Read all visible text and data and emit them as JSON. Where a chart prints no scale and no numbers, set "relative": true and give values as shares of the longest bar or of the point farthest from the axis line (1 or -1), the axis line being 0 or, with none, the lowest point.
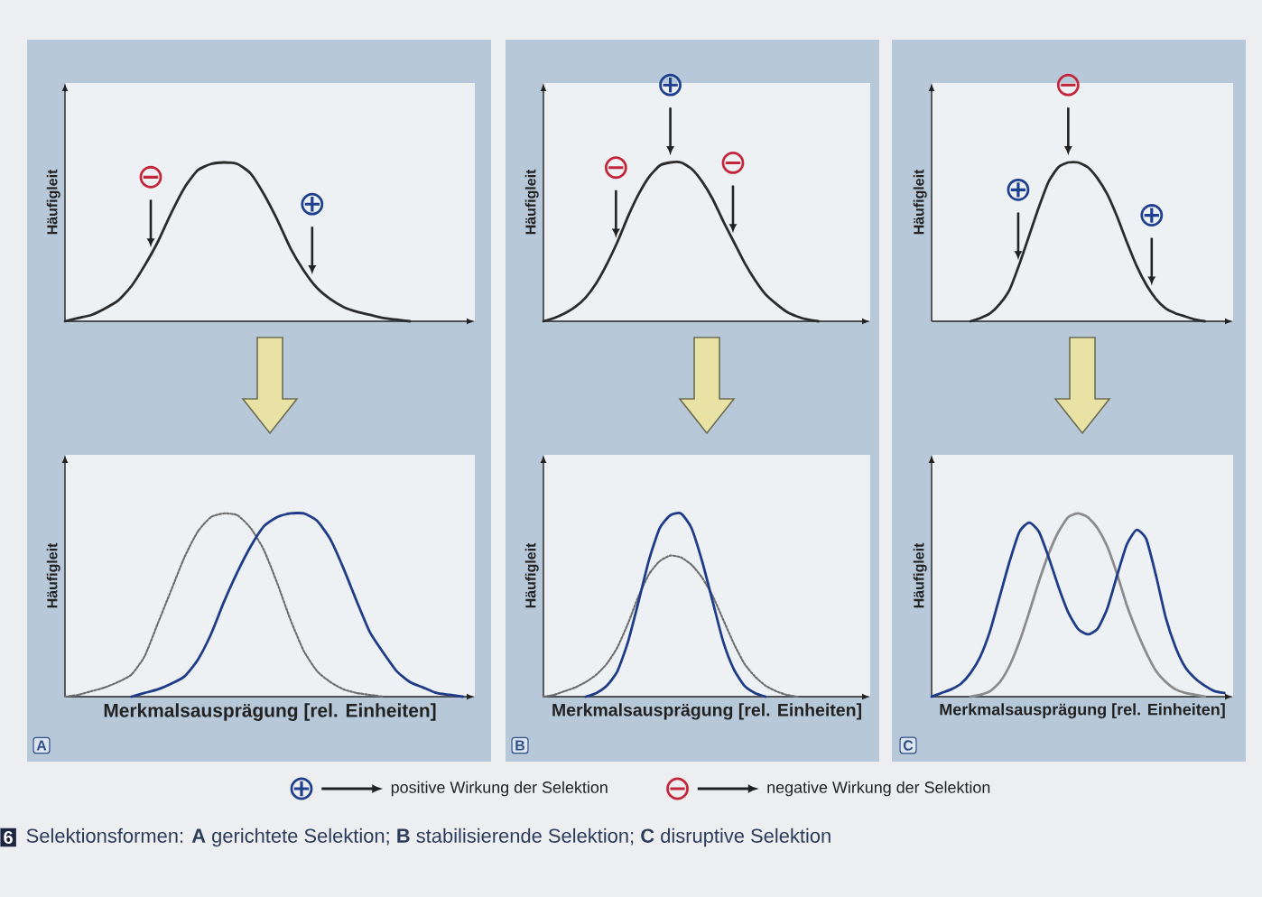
{
  "chart_data": [
    {
      "type": "line",
      "relative": true,
      "ylabel": "Häufigleit",
      "categories": [
        null,
        null,
        null,
        null,
        null,
        null,
        null,
        null,
        null,
        null,
        null,
        null,
        null,
        null,
        null,
        null,
        null,
        null,
        null,
        null,
        null,
        null,
        null,
        null,
        null,
        null,
        null,
        null,
        null,
        null,
        null
      ],
      "series": [
        {
          "color": "#2b2b2b",
          "values": [
            0.0,
            0.02,
            0.04,
            0.08,
            0.13,
            0.22,
            0.35,
            0.5,
            0.68,
            0.84,
            0.95,
            0.99,
            1.0,
            0.99,
            0.93,
            0.8,
            0.64,
            0.46,
            0.32,
            0.21,
            0.14,
            0.09,
            0.06,
            0.04,
            0.02,
            0.01,
            0.0,
            null,
            null,
            null,
            null
          ]
        }
      ],
      "annotations": [
        {
          "text": "⊖",
          "y": 0.42
        },
        {
          "text": "⊕",
          "y": 0.25
        }
      ]
    },
    {
      "type": "line",
      "relative": true,
      "ylabel": "Häufigleit",
      "categories": [
        null,
        null,
        null,
        null,
        null,
        null,
        null,
        null,
        null,
        null,
        null,
        null,
        null,
        null,
        null,
        null,
        null,
        null,
        null,
        null,
        null,
        null,
        null,
        null,
        null,
        null,
        null,
        null,
        null,
        null,
        null
      ],
      "series": [
        {
          "color": "#2b2b2b",
          "values": [
            0.0,
            0.02,
            0.05,
            0.09,
            0.15,
            0.24,
            0.36,
            0.5,
            0.66,
            0.8,
            0.91,
            0.98,
            1.0,
            1.0,
            0.96,
            0.88,
            0.77,
            0.63,
            0.5,
            0.37,
            0.26,
            0.17,
            0.11,
            0.06,
            0.03,
            0.01,
            0.0,
            null,
            null,
            null,
            null
          ]
        }
      ],
      "annotations": [
        {
          "text": "⊖",
          "y": 0.48
        },
        {
          "text": "⊕",
          "y": 1.0
        },
        {
          "text": "⊖",
          "y": 0.51
        }
      ]
    },
    {
      "type": "line",
      "relative": true,
      "ylabel": "Häufigleit",
      "categories": [
        null,
        null,
        null,
        null,
        null,
        null,
        null,
        null,
        null,
        null,
        null,
        null,
        null,
        null,
        null,
        null,
        null,
        null,
        null,
        null,
        null,
        null,
        null,
        null,
        null,
        null,
        null,
        null,
        null,
        null,
        null
      ],
      "series": [
        {
          "color": "#2b2b2b",
          "values": [
            null,
            null,
            null,
            null,
            0.0,
            0.02,
            0.05,
            0.11,
            0.2,
            0.36,
            0.54,
            0.72,
            0.88,
            0.97,
            1.0,
            1.0,
            0.97,
            0.9,
            0.8,
            0.66,
            0.5,
            0.35,
            0.23,
            0.14,
            0.08,
            0.05,
            0.03,
            0.01,
            0.0,
            null,
            null
          ]
        }
      ],
      "annotations": [
        {
          "text": "⊕",
          "y": 0.34
        },
        {
          "text": "⊖",
          "y": 1.0
        },
        {
          "text": "⊕",
          "y": 0.18
        }
      ]
    },
    {
      "type": "line",
      "relative": true,
      "ylabel": "Häufigleit",
      "xlabel": "Merkmalsausprägung [rel. Einheiten]",
      "categories": [
        null,
        null,
        null,
        null,
        null,
        null,
        null,
        null,
        null,
        null,
        null,
        null,
        null,
        null,
        null,
        null,
        null,
        null,
        null,
        null,
        null,
        null,
        null,
        null,
        null,
        null,
        null,
        null,
        null,
        null,
        null
      ],
      "series": [
        {
          "color": "#6e6e6e",
          "line_style": "dotted",
          "values": [
            0.0,
            0.01,
            0.03,
            0.05,
            0.08,
            0.12,
            0.22,
            0.4,
            0.58,
            0.76,
            0.9,
            0.98,
            1.0,
            0.99,
            0.92,
            0.8,
            0.62,
            0.42,
            0.25,
            0.14,
            0.08,
            0.04,
            0.02,
            0.01,
            0.0,
            null,
            null,
            null,
            null,
            null,
            null
          ]
        },
        {
          "color": "#1f3c88",
          "values": [
            null,
            null,
            null,
            null,
            null,
            0.0,
            0.02,
            0.04,
            0.07,
            0.11,
            0.2,
            0.34,
            0.52,
            0.68,
            0.82,
            0.93,
            0.98,
            1.0,
            1.0,
            0.96,
            0.86,
            0.7,
            0.52,
            0.35,
            0.24,
            0.14,
            0.08,
            0.05,
            0.02,
            0.01,
            0.0
          ]
        }
      ],
      "annotations": [
        "A"
      ]
    },
    {
      "type": "line",
      "relative": true,
      "ylabel": "Häufigleit",
      "xlabel": "Merkmalsausprägung [rel. Einheiten]",
      "categories": [
        null,
        null,
        null,
        null,
        null,
        null,
        null,
        null,
        null,
        null,
        null,
        null,
        null,
        null,
        null,
        null,
        null,
        null,
        null,
        null,
        null,
        null,
        null,
        null,
        null,
        null,
        null,
        null,
        null,
        null,
        null
      ],
      "series": [
        {
          "color": "#6e6e6e",
          "line_style": "dotted",
          "values": [
            0.0,
            0.01,
            0.03,
            0.05,
            0.08,
            0.12,
            0.18,
            0.27,
            0.4,
            0.55,
            0.67,
            0.74,
            0.77,
            0.76,
            0.72,
            0.65,
            0.55,
            0.42,
            0.29,
            0.18,
            0.11,
            0.06,
            0.03,
            0.01,
            0.0,
            null,
            null,
            null,
            null,
            null,
            null
          ]
        },
        {
          "color": "#1f3c88",
          "values": [
            null,
            null,
            null,
            null,
            0.0,
            0.02,
            0.06,
            0.14,
            0.3,
            0.52,
            0.75,
            0.92,
            0.99,
            1.0,
            0.92,
            0.74,
            0.52,
            0.3,
            0.15,
            0.06,
            0.02,
            0.0,
            null,
            null,
            null,
            null,
            null,
            null,
            null,
            null,
            null
          ]
        }
      ],
      "annotations": [
        "B"
      ]
    },
    {
      "type": "line",
      "relative": true,
      "ylabel": "Häufigleit",
      "xlabel": "Merkmalsausprägung [rel. Einheiten]",
      "categories": [
        null,
        null,
        null,
        null,
        null,
        null,
        null,
        null,
        null,
        null,
        null,
        null,
        null,
        null,
        null,
        null,
        null,
        null,
        null,
        null,
        null,
        null,
        null,
        null,
        null,
        null,
        null,
        null,
        null,
        null,
        null
      ],
      "series": [
        {
          "color": "#8c8c8c",
          "values": [
            null,
            null,
            null,
            null,
            0.0,
            0.01,
            0.03,
            0.08,
            0.17,
            0.3,
            0.46,
            0.63,
            0.78,
            0.9,
            0.98,
            1.0,
            0.98,
            0.92,
            0.82,
            0.67,
            0.5,
            0.36,
            0.24,
            0.14,
            0.08,
            0.04,
            0.02,
            0.01,
            0.0,
            null,
            null
          ]
        },
        {
          "color": "#1f3c88",
          "values": [
            0.0,
            0.02,
            0.04,
            0.07,
            0.13,
            0.22,
            0.36,
            0.55,
            0.74,
            0.9,
            0.95,
            0.9,
            0.76,
            0.6,
            0.46,
            0.37,
            0.34,
            0.37,
            0.48,
            0.66,
            0.83,
            0.91,
            0.86,
            0.66,
            0.43,
            0.27,
            0.16,
            0.1,
            0.06,
            0.03,
            0.02
          ]
        }
      ],
      "annotations": [
        "C"
      ]
    },
    {
      "type": "other",
      "annotations": [
        "⊕",
        "positive Wirkung der Selektion",
        "⊖",
        "negative Wirkung der Selektion",
        "6",
        "Selektionsformen: **A** gerichtete Selektion; **B** stabilisierende Selektion; **C** disruptive Selektion"
      ]
    }
  ]
}
